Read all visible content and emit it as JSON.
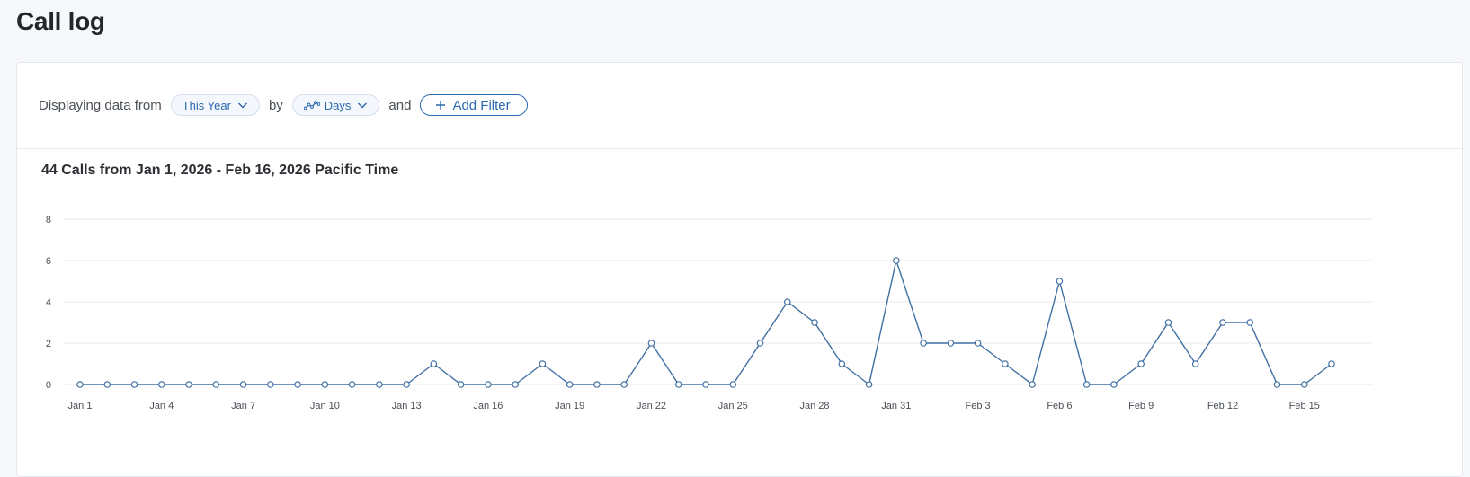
{
  "page": {
    "title": "Call log"
  },
  "filters": {
    "prefix": "Displaying data from",
    "range_label": "This Year",
    "by_text": "by",
    "interval_label": "Days",
    "and_text": "and",
    "add_filter_label": "Add Filter"
  },
  "colors": {
    "accent": "#2a68b0",
    "line": "#3f6fa3",
    "grid": "#e8eaed"
  },
  "chart_data": {
    "type": "line",
    "title": "44 Calls from Jan 1, 2026 - Feb 16, 2026 Pacific Time",
    "xlabel": "",
    "ylabel": "",
    "ylim": [
      0,
      8
    ],
    "yticks": [
      0,
      2,
      4,
      6,
      8
    ],
    "grid": true,
    "x": [
      "Jan 1",
      "Jan 2",
      "Jan 3",
      "Jan 4",
      "Jan 5",
      "Jan 6",
      "Jan 7",
      "Jan 8",
      "Jan 9",
      "Jan 10",
      "Jan 11",
      "Jan 12",
      "Jan 13",
      "Jan 14",
      "Jan 15",
      "Jan 16",
      "Jan 17",
      "Jan 18",
      "Jan 19",
      "Jan 20",
      "Jan 21",
      "Jan 22",
      "Jan 23",
      "Jan 24",
      "Jan 25",
      "Jan 26",
      "Jan 27",
      "Jan 28",
      "Jan 29",
      "Jan 30",
      "Jan 31",
      "Feb 1",
      "Feb 2",
      "Feb 3",
      "Feb 4",
      "Feb 5",
      "Feb 6",
      "Feb 7",
      "Feb 8",
      "Feb 9",
      "Feb 10",
      "Feb 11",
      "Feb 12",
      "Feb 13",
      "Feb 14",
      "Feb 15",
      "Feb 16"
    ],
    "xtick_labels": [
      "Jan 1",
      "Jan 4",
      "Jan 7",
      "Jan 10",
      "Jan 13",
      "Jan 16",
      "Jan 19",
      "Jan 22",
      "Jan 25",
      "Jan 28",
      "Jan 31",
      "Feb 3",
      "Feb 6",
      "Feb 9",
      "Feb 12",
      "Feb 15"
    ],
    "series": [
      {
        "values": [
          0,
          0,
          0,
          0,
          0,
          0,
          0,
          0,
          0,
          0,
          0,
          0,
          0,
          1,
          0,
          0,
          0,
          1,
          0,
          0,
          0,
          2,
          0,
          0,
          0,
          2,
          4,
          3,
          1,
          0,
          6,
          2,
          2,
          2,
          1,
          0,
          5,
          0,
          0,
          1,
          3,
          1,
          3,
          3,
          0,
          0,
          1
        ]
      }
    ]
  }
}
